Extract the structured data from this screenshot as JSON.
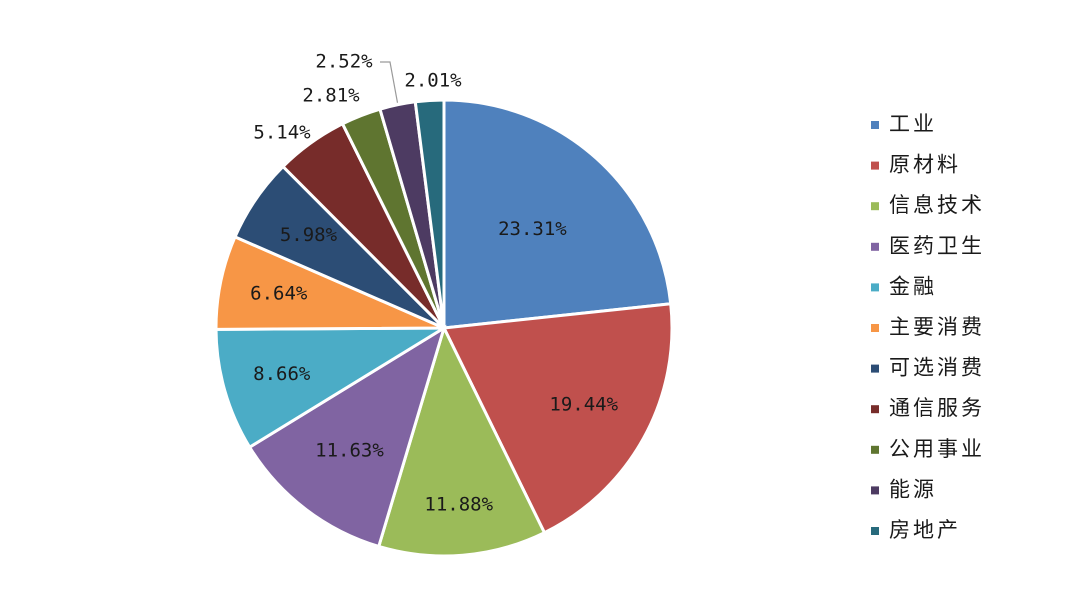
{
  "chart_data": {
    "type": "pie",
    "title": "",
    "categories": [
      "工业",
      "原材料",
      "信息技术",
      "医药卫生",
      "金融",
      "主要消费",
      "可选消费",
      "通信服务",
      "公用事业",
      "能源",
      "房地产"
    ],
    "values": [
      23.31,
      19.44,
      11.88,
      11.63,
      8.66,
      6.64,
      5.98,
      5.14,
      2.81,
      2.52,
      2.01
    ],
    "labels": [
      "23.31%",
      "19.44%",
      "11.88%",
      "11.63%",
      "8.66%",
      "6.64%",
      "5.98%",
      "5.14%",
      "2.81%",
      "2.52%",
      "2.01%"
    ],
    "colors": [
      "#4F81BD",
      "#C0504D",
      "#9BBB59",
      "#8064A2",
      "#4BACC6",
      "#F79646",
      "#2C4D75",
      "#772C2A",
      "#5F7530",
      "#4D3B62",
      "#276A7C"
    ],
    "legend_position": "right"
  }
}
